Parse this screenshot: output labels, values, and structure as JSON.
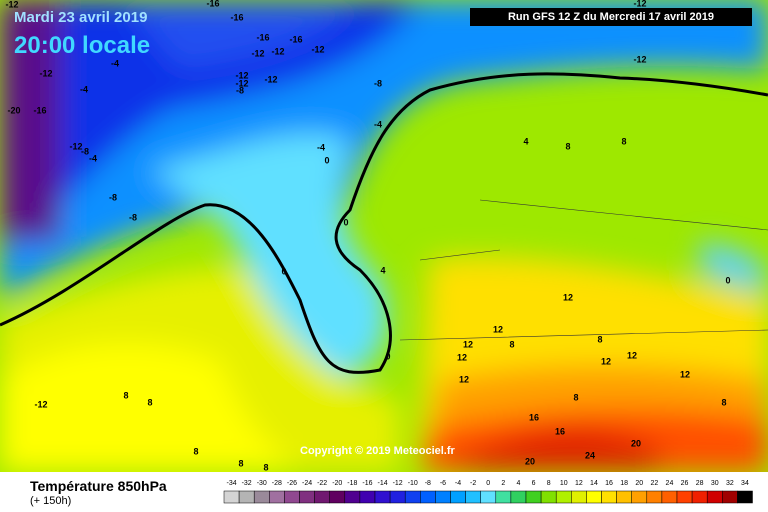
{
  "header": {
    "title": "Mardi 23 avril 2019",
    "time": "20:00 locale",
    "run": "Run GFS 12 Z du Mercredi 17 avril 2019"
  },
  "copyright": "Copyright © 2019 Meteociel.fr",
  "footer": {
    "title": "Température 850hPa",
    "subtitle": "(+ 150h)"
  },
  "legend": {
    "values": [
      -34,
      -32,
      -30,
      -28,
      -26,
      -24,
      -22,
      -20,
      -18,
      -16,
      -14,
      -12,
      -10,
      -8,
      -6,
      -4,
      -2,
      0,
      2,
      4,
      6,
      8,
      10,
      12,
      14,
      16,
      18,
      20,
      22,
      24,
      26,
      28,
      30,
      32,
      34
    ],
    "colors": [
      "#d4d4d4",
      "#b4b4b4",
      "#9a8a9a",
      "#a070a0",
      "#904890",
      "#803080",
      "#701870",
      "#600060",
      "#500090",
      "#4000b0",
      "#3010d0",
      "#2020e0",
      "#1040f0",
      "#0060ff",
      "#0080ff",
      "#00a0ff",
      "#20c0ff",
      "#60e0ff",
      "#40e0a0",
      "#30d060",
      "#40d020",
      "#80e000",
      "#b0f000",
      "#e0f000",
      "#ffff00",
      "#ffe000",
      "#ffc000",
      "#ffa000",
      "#ff8000",
      "#ff6000",
      "#ff4000",
      "#f02000",
      "#d00000",
      "#a00000",
      "#000000"
    ]
  },
  "contours": {
    "labels": [
      "-12",
      "-16",
      "-16",
      "-16",
      "-16",
      "-12",
      "-12",
      "-12",
      "-4",
      "-12",
      "-12",
      "-12",
      "-12",
      "-8",
      "-8",
      "-4",
      "-20",
      "-16",
      "-4",
      "-12",
      "-8",
      "-4",
      "-4",
      "0",
      "-8",
      "-8",
      "-12",
      "4",
      "8",
      "8",
      "0",
      "4",
      "0",
      "0",
      "12",
      "12",
      "8",
      "12",
      "12",
      "8",
      "12",
      "12",
      "12",
      "8",
      "8",
      "-12",
      "0",
      "8",
      "8",
      "16",
      "16",
      "20",
      "20",
      "24",
      "8",
      "8",
      "8",
      "12",
      "-12"
    ]
  }
}
